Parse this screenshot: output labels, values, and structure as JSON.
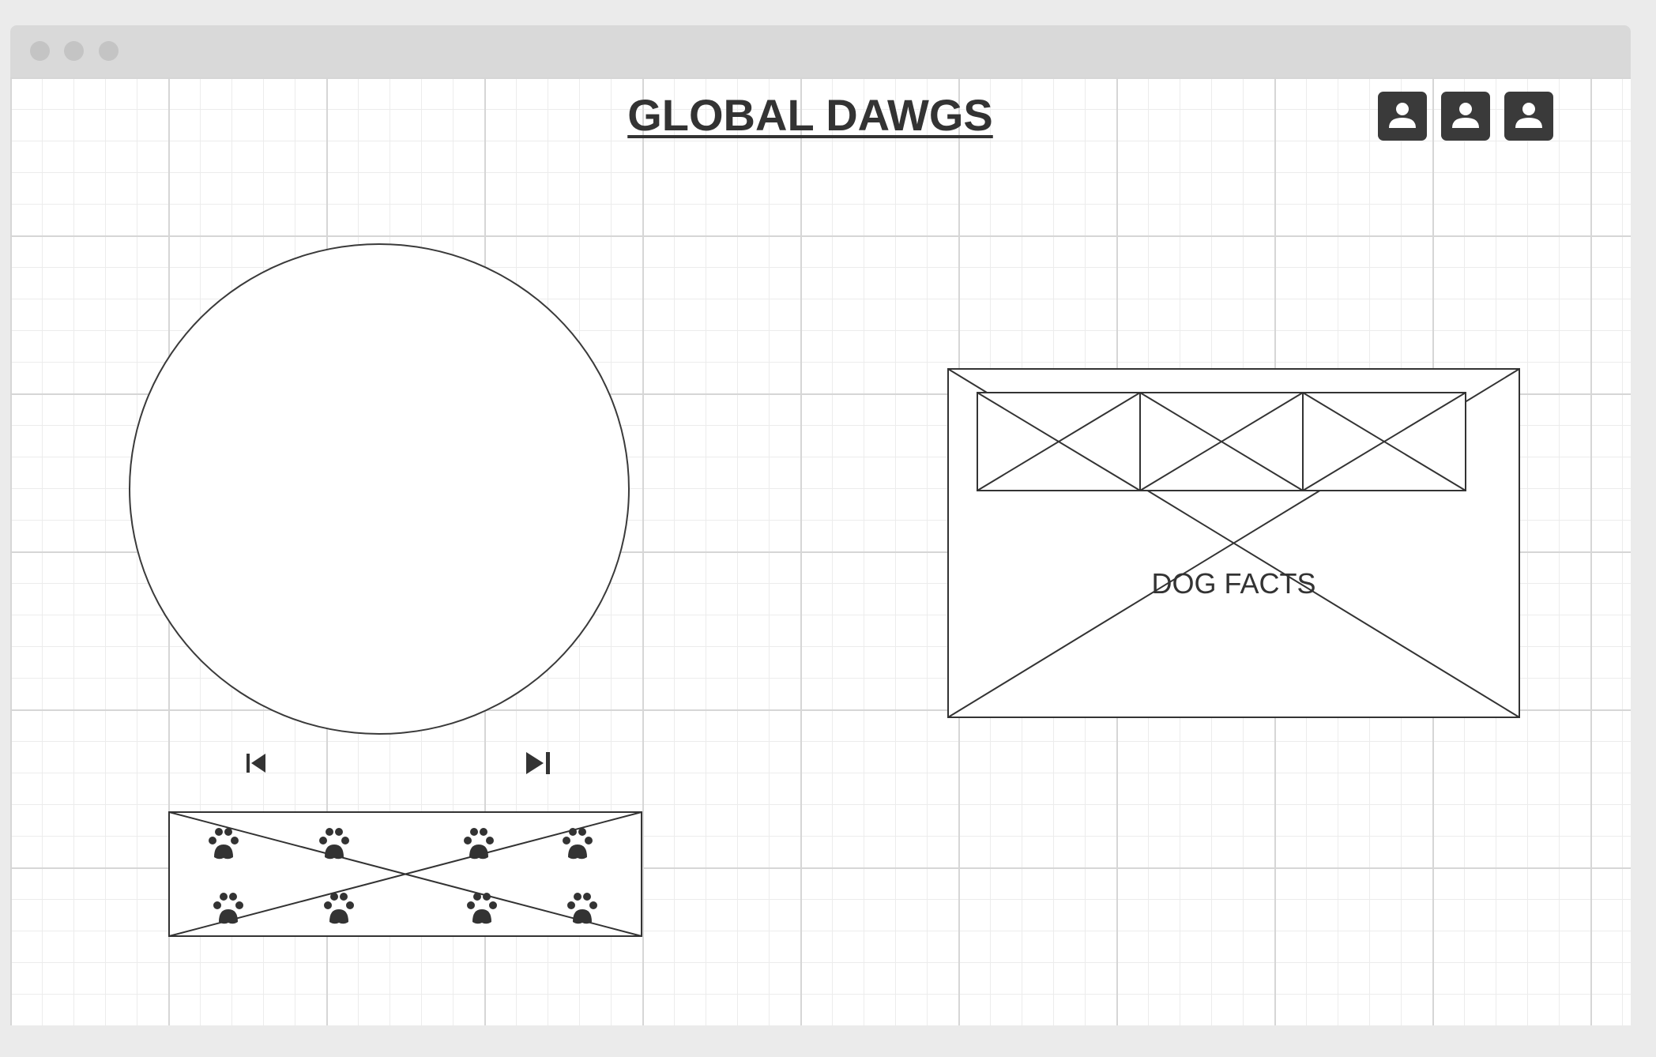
{
  "window": {
    "controls": [
      "close",
      "minimize",
      "maximize"
    ]
  },
  "header": {
    "title": "GLOBAL DAWGS",
    "user_icons": [
      "user-icon",
      "user-icon",
      "user-icon"
    ]
  },
  "gallery": {
    "prev_icon": "skip-back-icon",
    "next_icon": "skip-forward-icon"
  },
  "paw_strip": {
    "icon": "paw-icon",
    "count": 8
  },
  "facts": {
    "label": "DOG FACTS",
    "thumbnail_count": 3
  },
  "colors": {
    "stroke": "#333333",
    "titlebar": "#d9d9d9",
    "grid": "#ececec"
  }
}
